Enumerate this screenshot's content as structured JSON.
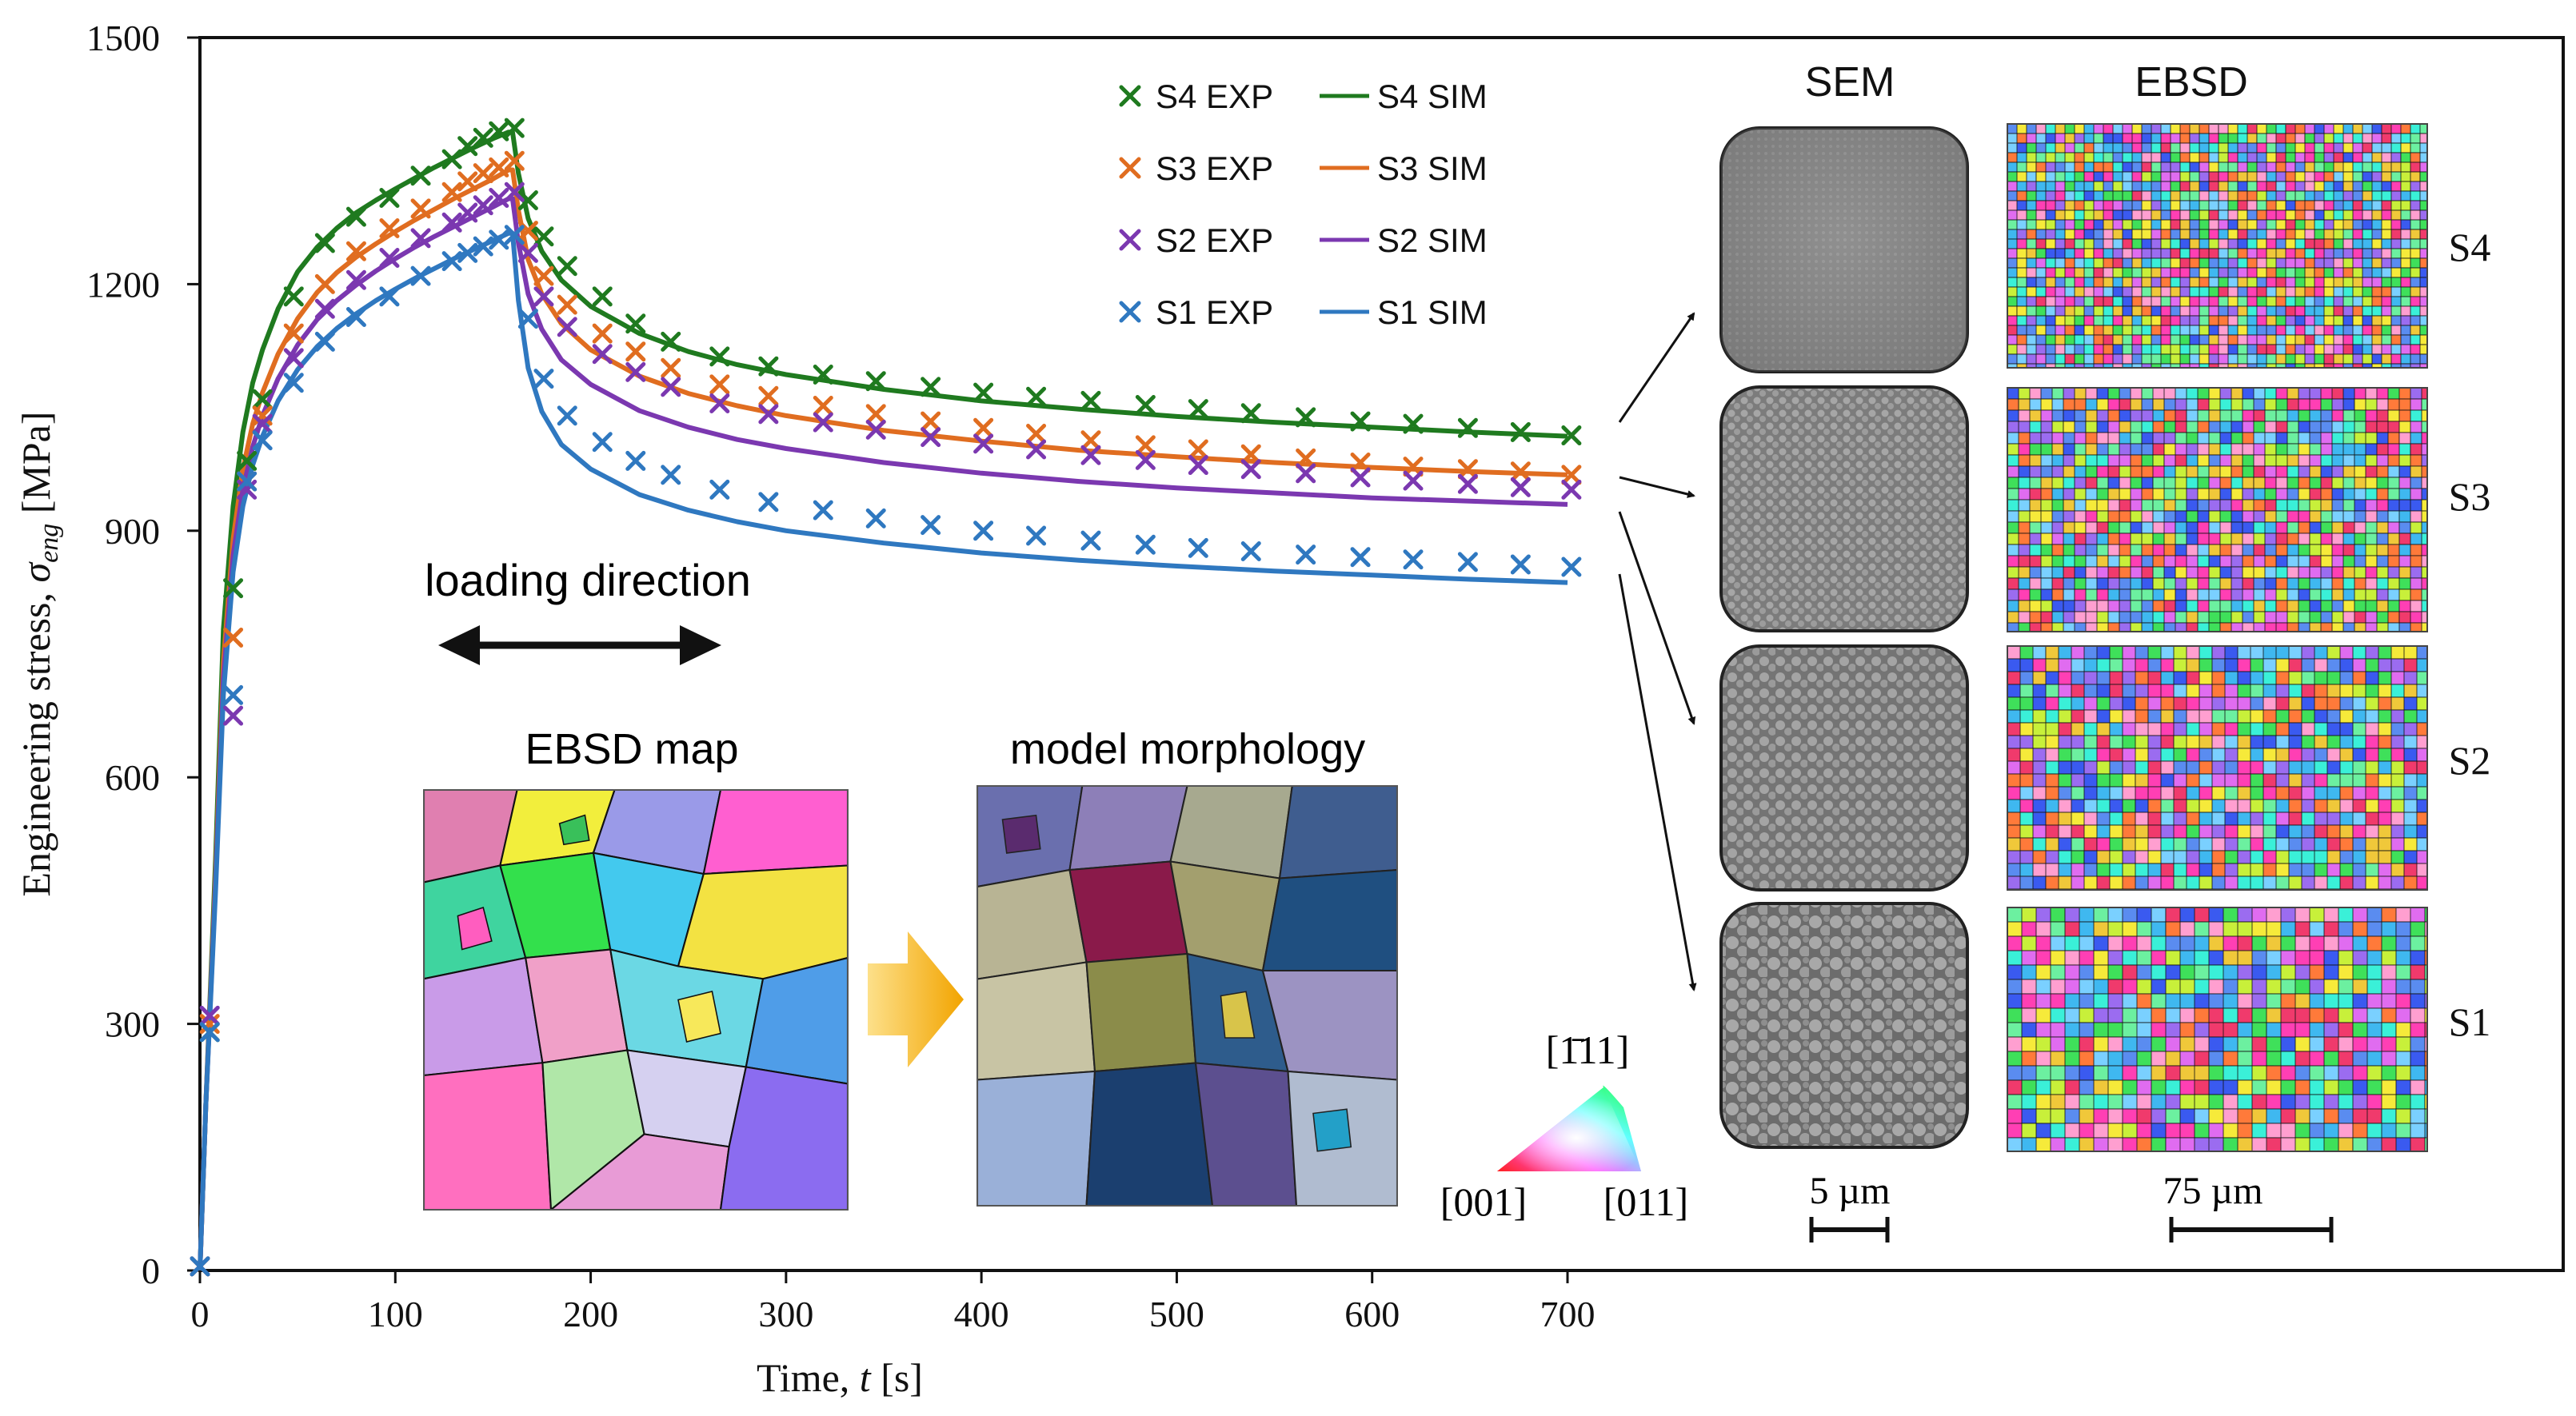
{
  "chart_data": {
    "type": "line",
    "xlabel_text": "Time,",
    "xlabel_var": "t",
    "xlabel_unit": "[s]",
    "ylabel_text": "Engineering  stress,",
    "ylabel_var": "σ",
    "ylabel_sub": "eng",
    "ylabel_unit": "[MPa]",
    "xlim": [
      0,
      1200
    ],
    "ylim": [
      0,
      1500
    ],
    "x_ticks": [
      0,
      100,
      200,
      300,
      400,
      500,
      600,
      700
    ],
    "y_ticks": [
      0,
      300,
      600,
      900,
      1200,
      1500
    ],
    "legend_position": "top-center",
    "series": [
      {
        "name": "S4 EXP",
        "kind": "scatter",
        "color": "#1f7a1f",
        "x": [
          0,
          5,
          17,
          24,
          32,
          48,
          64,
          80,
          97,
          113,
          129,
          137,
          145,
          153,
          161,
          168,
          176,
          188,
          206,
          223,
          241,
          266,
          291,
          319,
          346,
          374,
          401,
          428,
          456,
          484,
          511,
          538,
          566,
          594,
          621,
          649,
          676,
          702
        ],
        "y": [
          5,
          290,
          830,
          985,
          1060,
          1185,
          1250,
          1282,
          1305,
          1332,
          1352,
          1368,
          1378,
          1386,
          1390,
          1302,
          1258,
          1222,
          1185,
          1152,
          1130,
          1112,
          1100,
          1090,
          1082,
          1075,
          1068,
          1063,
          1058,
          1053,
          1048,
          1043,
          1038,
          1033,
          1030,
          1025,
          1020,
          1016
        ]
      },
      {
        "name": "S3 EXP",
        "kind": "scatter",
        "color": "#e06d20",
        "x": [
          0,
          5,
          17,
          24,
          32,
          48,
          64,
          80,
          97,
          113,
          129,
          137,
          145,
          153,
          161,
          168,
          176,
          188,
          206,
          223,
          241,
          266,
          291,
          319,
          346,
          374,
          401,
          428,
          456,
          484,
          511,
          538,
          566,
          594,
          621,
          649,
          676,
          702
        ],
        "y": [
          5,
          300,
          770,
          960,
          1040,
          1140,
          1200,
          1240,
          1268,
          1292,
          1312,
          1325,
          1335,
          1342,
          1350,
          1265,
          1210,
          1175,
          1140,
          1118,
          1098,
          1078,
          1064,
          1052,
          1042,
          1033,
          1025,
          1018,
          1010,
          1004,
          999,
          993,
          988,
          983,
          978,
          975,
          972,
          968
        ]
      },
      {
        "name": "S2 EXP",
        "kind": "scatter",
        "color": "#7b38b0",
        "x": [
          0,
          5,
          17,
          24,
          32,
          48,
          64,
          80,
          97,
          113,
          129,
          137,
          145,
          153,
          161,
          168,
          176,
          188,
          206,
          223,
          241,
          266,
          291,
          319,
          346,
          374,
          401,
          428,
          456,
          484,
          511,
          538,
          566,
          594,
          621,
          649,
          676,
          702
        ],
        "y": [
          5,
          310,
          675,
          950,
          1030,
          1110,
          1170,
          1205,
          1232,
          1256,
          1275,
          1287,
          1296,
          1305,
          1312,
          1238,
          1185,
          1148,
          1115,
          1093,
          1075,
          1055,
          1042,
          1032,
          1023,
          1014,
          1006,
          999,
          992,
          986,
          980,
          975,
          970,
          965,
          961,
          957,
          953,
          950
        ]
      },
      {
        "name": "S1 EXP",
        "kind": "scatter",
        "color": "#2f78c0",
        "x": [
          0,
          5,
          17,
          24,
          32,
          48,
          64,
          80,
          97,
          113,
          129,
          137,
          145,
          153,
          161,
          168,
          176,
          188,
          206,
          223,
          241,
          266,
          291,
          319,
          346,
          374,
          401,
          428,
          456,
          484,
          511,
          538,
          566,
          594,
          621,
          649,
          676,
          702
        ],
        "y": [
          5,
          290,
          700,
          960,
          1010,
          1080,
          1130,
          1160,
          1185,
          1210,
          1228,
          1238,
          1246,
          1254,
          1260,
          1158,
          1085,
          1040,
          1008,
          985,
          968,
          950,
          935,
          925,
          915,
          907,
          900,
          894,
          888,
          883,
          879,
          875,
          871,
          868,
          865,
          862,
          859,
          856
        ]
      },
      {
        "name": "S4 SIM",
        "kind": "line",
        "color": "#1f7a1f",
        "x": [
          0,
          3,
          8,
          12,
          17,
          22,
          27,
          32,
          40,
          50,
          60,
          70,
          80,
          90,
          100,
          110,
          120,
          130,
          140,
          150,
          158,
          160,
          163,
          168,
          175,
          185,
          200,
          225,
          250,
          275,
          300,
          350,
          400,
          450,
          500,
          550,
          600,
          650,
          700
        ],
        "y": [
          0,
          200,
          500,
          780,
          930,
          1020,
          1080,
          1120,
          1170,
          1215,
          1245,
          1268,
          1287,
          1302,
          1316,
          1329,
          1342,
          1354,
          1366,
          1377,
          1385,
          1385,
          1335,
          1280,
          1240,
          1205,
          1173,
          1140,
          1118,
          1102,
          1090,
          1072,
          1058,
          1048,
          1039,
          1032,
          1026,
          1020,
          1015
        ]
      },
      {
        "name": "S3 SIM",
        "kind": "line",
        "color": "#e06d20",
        "x": [
          0,
          3,
          8,
          12,
          17,
          22,
          27,
          32,
          40,
          50,
          60,
          70,
          80,
          90,
          100,
          110,
          120,
          130,
          140,
          150,
          158,
          160,
          163,
          168,
          175,
          185,
          200,
          225,
          250,
          275,
          300,
          350,
          400,
          450,
          500,
          550,
          600,
          650,
          700
        ],
        "y": [
          0,
          200,
          480,
          740,
          890,
          975,
          1030,
          1068,
          1115,
          1158,
          1190,
          1214,
          1233,
          1249,
          1264,
          1278,
          1291,
          1304,
          1316,
          1328,
          1339,
          1339,
          1290,
          1230,
          1188,
          1152,
          1120,
          1088,
          1067,
          1052,
          1040,
          1022,
          1009,
          998,
          990,
          983,
          977,
          972,
          968
        ]
      },
      {
        "name": "S2 SIM",
        "kind": "line",
        "color": "#7b38b0",
        "x": [
          0,
          3,
          8,
          12,
          17,
          22,
          27,
          32,
          40,
          50,
          60,
          70,
          80,
          90,
          100,
          110,
          120,
          130,
          140,
          150,
          158,
          160,
          163,
          168,
          175,
          185,
          200,
          225,
          250,
          275,
          300,
          350,
          400,
          450,
          500,
          550,
          600,
          650,
          700
        ],
        "y": [
          0,
          200,
          470,
          720,
          870,
          950,
          1002,
          1040,
          1085,
          1126,
          1157,
          1180,
          1199,
          1216,
          1231,
          1245,
          1258,
          1270,
          1282,
          1294,
          1304,
          1304,
          1250,
          1188,
          1145,
          1108,
          1078,
          1046,
          1026,
          1011,
          1000,
          983,
          970,
          960,
          952,
          946,
          940,
          936,
          932
        ]
      },
      {
        "name": "S1 SIM",
        "kind": "line",
        "color": "#2f78c0",
        "x": [
          0,
          3,
          8,
          12,
          17,
          22,
          27,
          32,
          40,
          50,
          60,
          70,
          80,
          90,
          100,
          110,
          120,
          130,
          140,
          150,
          158,
          160,
          163,
          168,
          175,
          185,
          200,
          225,
          250,
          275,
          300,
          350,
          400,
          450,
          500,
          550,
          600,
          650,
          700
        ],
        "y": [
          0,
          200,
          460,
          700,
          850,
          930,
          980,
          1015,
          1058,
          1096,
          1124,
          1146,
          1164,
          1180,
          1194,
          1207,
          1219,
          1231,
          1242,
          1253,
          1262,
          1262,
          1180,
          1098,
          1045,
          1005,
          975,
          944,
          925,
          911,
          900,
          885,
          873,
          864,
          857,
          851,
          846,
          841,
          837
        ]
      }
    ]
  },
  "annotations": {
    "loading_direction": "loading direction",
    "ebsd_map_title": "EBSD map",
    "model_morphology_title": "model morphology",
    "sem_header": "SEM",
    "ebsd_header": "EBSD",
    "sample_labels": [
      "S4",
      "S3",
      "S2",
      "S1"
    ],
    "ipf_top": "[1̄11]",
    "ipf_left": "[001]",
    "ipf_right": "[011]",
    "sem_scale": "5 µm",
    "ebsd_scale": "75 µm"
  },
  "colors": {
    "s4": "#1f7a1f",
    "s3": "#e06d20",
    "s2": "#7b38b0",
    "s1": "#2f78c0",
    "arrow_yellow": "#f5b51a"
  }
}
